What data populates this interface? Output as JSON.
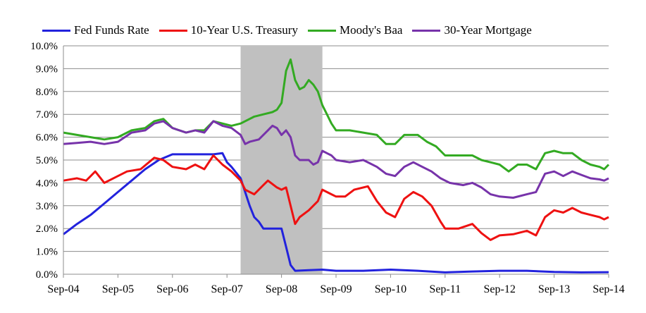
{
  "chart_data": {
    "type": "line",
    "title": "",
    "xlabel": "",
    "ylabel": "",
    "x_ticks": [
      "Sep-04",
      "Sep-05",
      "Sep-06",
      "Sep-07",
      "Sep-08",
      "Sep-09",
      "Sep-10",
      "Sep-11",
      "Sep-12",
      "Sep-13",
      "Sep-14"
    ],
    "y_ticks": [
      "0.0%",
      "1.0%",
      "2.0%",
      "3.0%",
      "4.0%",
      "5.0%",
      "6.0%",
      "7.0%",
      "8.0%",
      "9.0%",
      "10.0%"
    ],
    "xlim": [
      "Sep-04",
      "Sep-14"
    ],
    "ylim": [
      0,
      10
    ],
    "grid": "horizontal",
    "legend_position": "top",
    "shaded_region": {
      "start": "Dec-07",
      "end": "Jun-09",
      "color": "#c0c0c0"
    },
    "series": [
      {
        "name": "Fed Funds Rate",
        "color": "#2222dd",
        "points": [
          [
            "Sep-04",
            1.75
          ],
          [
            "Dec-04",
            2.2
          ],
          [
            "Mar-05",
            2.6
          ],
          [
            "Jun-05",
            3.1
          ],
          [
            "Sep-05",
            3.6
          ],
          [
            "Dec-05",
            4.1
          ],
          [
            "Mar-06",
            4.6
          ],
          [
            "Jun-06",
            5.0
          ],
          [
            "Sep-06",
            5.25
          ],
          [
            "Dec-06",
            5.25
          ],
          [
            "Mar-07",
            5.25
          ],
          [
            "Jun-07",
            5.25
          ],
          [
            "Aug-07",
            5.3
          ],
          [
            "Sep-07",
            4.9
          ],
          [
            "Oct-07",
            4.7
          ],
          [
            "Dec-07",
            4.2
          ],
          [
            "Jan-08",
            3.6
          ],
          [
            "Feb-08",
            3.0
          ],
          [
            "Mar-08",
            2.5
          ],
          [
            "Apr-08",
            2.3
          ],
          [
            "May-08",
            2.0
          ],
          [
            "Jun-08",
            2.0
          ],
          [
            "Jul-08",
            2.0
          ],
          [
            "Aug-08",
            2.0
          ],
          [
            "Sep-08",
            2.0
          ],
          [
            "Oct-08",
            1.2
          ],
          [
            "Nov-08",
            0.4
          ],
          [
            "Dec-08",
            0.15
          ],
          [
            "Mar-09",
            0.18
          ],
          [
            "Jun-09",
            0.2
          ],
          [
            "Sep-09",
            0.15
          ],
          [
            "Mar-10",
            0.15
          ],
          [
            "Sep-10",
            0.2
          ],
          [
            "Mar-11",
            0.15
          ],
          [
            "Sep-11",
            0.08
          ],
          [
            "Mar-12",
            0.12
          ],
          [
            "Sep-12",
            0.15
          ],
          [
            "Mar-13",
            0.15
          ],
          [
            "Sep-13",
            0.1
          ],
          [
            "Mar-14",
            0.08
          ],
          [
            "Sep-14",
            0.09
          ]
        ]
      },
      {
        "name": "10-Year U.S. Treasury",
        "color": "#ee1111",
        "points": [
          [
            "Sep-04",
            4.1
          ],
          [
            "Dec-04",
            4.2
          ],
          [
            "Feb-05",
            4.1
          ],
          [
            "Apr-05",
            4.5
          ],
          [
            "Jun-05",
            4.0
          ],
          [
            "Sep-05",
            4.3
          ],
          [
            "Nov-05",
            4.5
          ],
          [
            "Feb-06",
            4.6
          ],
          [
            "May-06",
            5.1
          ],
          [
            "Jul-06",
            5.0
          ],
          [
            "Sep-06",
            4.7
          ],
          [
            "Dec-06",
            4.6
          ],
          [
            "Feb-07",
            4.8
          ],
          [
            "Apr-07",
            4.6
          ],
          [
            "Jun-07",
            5.2
          ],
          [
            "Aug-07",
            4.8
          ],
          [
            "Oct-07",
            4.5
          ],
          [
            "Dec-07",
            4.1
          ],
          [
            "Jan-08",
            3.7
          ],
          [
            "Mar-08",
            3.5
          ],
          [
            "May-08",
            3.9
          ],
          [
            "Jun-08",
            4.1
          ],
          [
            "Aug-08",
            3.8
          ],
          [
            "Sep-08",
            3.7
          ],
          [
            "Oct-08",
            3.8
          ],
          [
            "Nov-08",
            3.0
          ],
          [
            "Dec-08",
            2.2
          ],
          [
            "Jan-09",
            2.5
          ],
          [
            "Mar-09",
            2.8
          ],
          [
            "May-09",
            3.2
          ],
          [
            "Jun-09",
            3.7
          ],
          [
            "Aug-09",
            3.5
          ],
          [
            "Sep-09",
            3.4
          ],
          [
            "Nov-09",
            3.4
          ],
          [
            "Jan-10",
            3.7
          ],
          [
            "Apr-10",
            3.85
          ],
          [
            "Jun-10",
            3.2
          ],
          [
            "Aug-10",
            2.7
          ],
          [
            "Oct-10",
            2.5
          ],
          [
            "Dec-10",
            3.3
          ],
          [
            "Feb-11",
            3.6
          ],
          [
            "Apr-11",
            3.4
          ],
          [
            "Jun-11",
            3.0
          ],
          [
            "Aug-11",
            2.3
          ],
          [
            "Sep-11",
            2.0
          ],
          [
            "Dec-11",
            2.0
          ],
          [
            "Mar-12",
            2.2
          ],
          [
            "May-12",
            1.8
          ],
          [
            "Jul-12",
            1.5
          ],
          [
            "Sep-12",
            1.7
          ],
          [
            "Dec-12",
            1.75
          ],
          [
            "Mar-13",
            1.9
          ],
          [
            "May-13",
            1.7
          ],
          [
            "Jul-13",
            2.5
          ],
          [
            "Sep-13",
            2.8
          ],
          [
            "Nov-13",
            2.7
          ],
          [
            "Jan-14",
            2.9
          ],
          [
            "Mar-14",
            2.7
          ],
          [
            "May-14",
            2.6
          ],
          [
            "Jul-14",
            2.5
          ],
          [
            "Aug-14",
            2.4
          ],
          [
            "Sep-14",
            2.5
          ]
        ]
      },
      {
        "name": "Moody's Baa",
        "color": "#33aa22",
        "points": [
          [
            "Sep-04",
            6.2
          ],
          [
            "Dec-04",
            6.1
          ],
          [
            "Mar-05",
            6.0
          ],
          [
            "Jun-05",
            5.9
          ],
          [
            "Sep-05",
            6.0
          ],
          [
            "Dec-05",
            6.3
          ],
          [
            "Mar-06",
            6.4
          ],
          [
            "May-06",
            6.7
          ],
          [
            "Jul-06",
            6.8
          ],
          [
            "Sep-06",
            6.4
          ],
          [
            "Dec-06",
            6.2
          ],
          [
            "Feb-07",
            6.3
          ],
          [
            "Apr-07",
            6.3
          ],
          [
            "Jun-07",
            6.7
          ],
          [
            "Aug-07",
            6.6
          ],
          [
            "Oct-07",
            6.5
          ],
          [
            "Dec-07",
            6.6
          ],
          [
            "Jan-08",
            6.7
          ],
          [
            "Mar-08",
            6.9
          ],
          [
            "May-08",
            7.0
          ],
          [
            "Jul-08",
            7.1
          ],
          [
            "Aug-08",
            7.2
          ],
          [
            "Sep-08",
            7.5
          ],
          [
            "Oct-08",
            8.9
          ],
          [
            "Nov-08",
            9.4
          ],
          [
            "Dec-08",
            8.5
          ],
          [
            "Jan-09",
            8.1
          ],
          [
            "Feb-09",
            8.2
          ],
          [
            "Mar-09",
            8.5
          ],
          [
            "Apr-09",
            8.3
          ],
          [
            "May-09",
            8.0
          ],
          [
            "Jun-09",
            7.4
          ],
          [
            "Jul-09",
            7.0
          ],
          [
            "Aug-09",
            6.6
          ],
          [
            "Sep-09",
            6.3
          ],
          [
            "Dec-09",
            6.3
          ],
          [
            "Mar-10",
            6.2
          ],
          [
            "Jun-10",
            6.1
          ],
          [
            "Aug-10",
            5.7
          ],
          [
            "Oct-10",
            5.7
          ],
          [
            "Dec-10",
            6.1
          ],
          [
            "Mar-11",
            6.1
          ],
          [
            "May-11",
            5.8
          ],
          [
            "Jul-11",
            5.6
          ],
          [
            "Sep-11",
            5.2
          ],
          [
            "Dec-11",
            5.2
          ],
          [
            "Mar-12",
            5.2
          ],
          [
            "May-12",
            5.0
          ],
          [
            "Jul-12",
            4.9
          ],
          [
            "Sep-12",
            4.8
          ],
          [
            "Nov-12",
            4.5
          ],
          [
            "Jan-13",
            4.8
          ],
          [
            "Mar-13",
            4.8
          ],
          [
            "May-13",
            4.6
          ],
          [
            "Jul-13",
            5.3
          ],
          [
            "Sep-13",
            5.4
          ],
          [
            "Nov-13",
            5.3
          ],
          [
            "Jan-14",
            5.3
          ],
          [
            "Mar-14",
            5.0
          ],
          [
            "May-14",
            4.8
          ],
          [
            "Jul-14",
            4.7
          ],
          [
            "Aug-14",
            4.6
          ],
          [
            "Sep-14",
            4.8
          ]
        ]
      },
      {
        "name": "30-Year Mortgage",
        "color": "#7733aa",
        "points": [
          [
            "Sep-04",
            5.7
          ],
          [
            "Dec-04",
            5.75
          ],
          [
            "Mar-05",
            5.8
          ],
          [
            "Jun-05",
            5.7
          ],
          [
            "Sep-05",
            5.8
          ],
          [
            "Dec-05",
            6.2
          ],
          [
            "Mar-06",
            6.3
          ],
          [
            "May-06",
            6.6
          ],
          [
            "Jul-06",
            6.7
          ],
          [
            "Sep-06",
            6.4
          ],
          [
            "Dec-06",
            6.2
          ],
          [
            "Feb-07",
            6.3
          ],
          [
            "Apr-07",
            6.2
          ],
          [
            "Jun-07",
            6.7
          ],
          [
            "Aug-07",
            6.5
          ],
          [
            "Oct-07",
            6.4
          ],
          [
            "Dec-07",
            6.1
          ],
          [
            "Jan-08",
            5.7
          ],
          [
            "Feb-08",
            5.8
          ],
          [
            "Apr-08",
            5.9
          ],
          [
            "Jun-08",
            6.3
          ],
          [
            "Jul-08",
            6.5
          ],
          [
            "Aug-08",
            6.4
          ],
          [
            "Sep-08",
            6.1
          ],
          [
            "Oct-08",
            6.3
          ],
          [
            "Nov-08",
            6.0
          ],
          [
            "Dec-08",
            5.2
          ],
          [
            "Jan-09",
            5.0
          ],
          [
            "Mar-09",
            5.0
          ],
          [
            "Apr-09",
            4.8
          ],
          [
            "May-09",
            4.9
          ],
          [
            "Jun-09",
            5.4
          ],
          [
            "Jul-09",
            5.3
          ],
          [
            "Aug-09",
            5.2
          ],
          [
            "Sep-09",
            5.0
          ],
          [
            "Dec-09",
            4.9
          ],
          [
            "Mar-10",
            5.0
          ],
          [
            "Jun-10",
            4.7
          ],
          [
            "Aug-10",
            4.4
          ],
          [
            "Oct-10",
            4.3
          ],
          [
            "Dec-10",
            4.7
          ],
          [
            "Feb-11",
            4.9
          ],
          [
            "Apr-11",
            4.7
          ],
          [
            "Jun-11",
            4.5
          ],
          [
            "Aug-11",
            4.2
          ],
          [
            "Oct-11",
            4.0
          ],
          [
            "Jan-12",
            3.9
          ],
          [
            "Mar-12",
            4.0
          ],
          [
            "May-12",
            3.8
          ],
          [
            "Jul-12",
            3.5
          ],
          [
            "Sep-12",
            3.4
          ],
          [
            "Dec-12",
            3.35
          ],
          [
            "Mar-13",
            3.5
          ],
          [
            "May-13",
            3.6
          ],
          [
            "Jul-13",
            4.4
          ],
          [
            "Sep-13",
            4.5
          ],
          [
            "Nov-13",
            4.3
          ],
          [
            "Jan-14",
            4.5
          ],
          [
            "Mar-14",
            4.35
          ],
          [
            "May-14",
            4.2
          ],
          [
            "Jul-14",
            4.15
          ],
          [
            "Aug-14",
            4.1
          ],
          [
            "Sep-14",
            4.2
          ]
        ]
      }
    ]
  }
}
